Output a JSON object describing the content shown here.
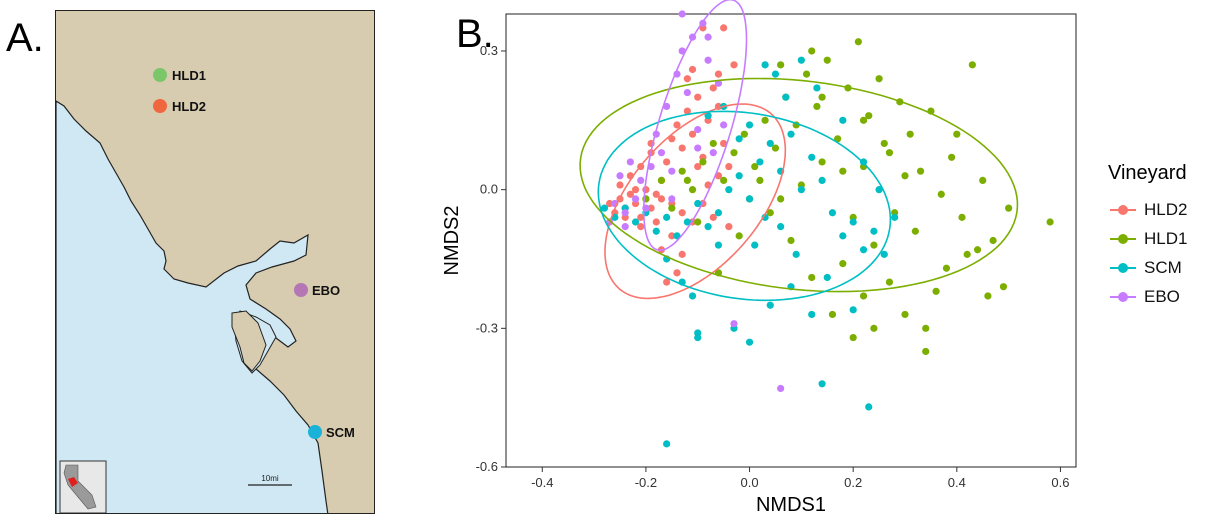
{
  "panels": {
    "a_label": "A.",
    "b_label": "B."
  },
  "map": {
    "sites": [
      {
        "name": "HLD1",
        "color": "#7cc66a"
      },
      {
        "name": "HLD2",
        "color": "#f0663e"
      },
      {
        "name": "EBO",
        "color": "#b576b5"
      },
      {
        "name": "SCM",
        "color": "#1ab2d8"
      }
    ],
    "scale_label": "10mi",
    "land_color": "#d8ccb0",
    "water_color": "#cfe8f3"
  },
  "chart_data": {
    "type": "scatter",
    "xlabel": "NMDS1",
    "ylabel": "NMDS2",
    "xlim": [
      -0.47,
      0.63
    ],
    "ylim": [
      -0.6,
      0.38
    ],
    "xticks": [
      "-0.4",
      "-0.2",
      "0.0",
      "0.2",
      "0.4",
      "0.6"
    ],
    "xtick_values": [
      -0.4,
      -0.2,
      0.0,
      0.2,
      0.4,
      0.6
    ],
    "yticks": [
      "0.3",
      "0.0",
      "-0.3",
      "-0.6"
    ],
    "ytick_values": [
      0.3,
      0.0,
      -0.3,
      -0.6
    ],
    "grid": false,
    "legend": {
      "title": "Vineyard",
      "placement": "right"
    },
    "series": [
      {
        "name": "HLD2",
        "color": "#f8766d",
        "ellipse": {
          "cx": -0.105,
          "cy": -0.025,
          "rx": 0.24,
          "ry": 0.13,
          "angle": 55
        },
        "points": [
          [
            -0.27,
            -0.03
          ],
          [
            -0.26,
            -0.05
          ],
          [
            -0.25,
            -0.02
          ],
          [
            -0.24,
            -0.04
          ],
          [
            -0.23,
            -0.01
          ],
          [
            -0.22,
            -0.03
          ],
          [
            -0.21,
            -0.06
          ],
          [
            -0.2,
            -0.02
          ],
          [
            -0.19,
            -0.04
          ],
          [
            -0.18,
            -0.01
          ],
          [
            -0.25,
            0.01
          ],
          [
            -0.23,
            0.03
          ],
          [
            -0.21,
            0.05
          ],
          [
            -0.19,
            0.08
          ],
          [
            -0.17,
            0.02
          ],
          [
            -0.16,
            0.06
          ],
          [
            -0.15,
            0.11
          ],
          [
            -0.14,
            0.14
          ],
          [
            -0.13,
            0.09
          ],
          [
            -0.12,
            0.17
          ],
          [
            -0.11,
            0.12
          ],
          [
            -0.1,
            0.2
          ],
          [
            -0.09,
            0.07
          ],
          [
            -0.08,
            0.15
          ],
          [
            -0.07,
            0.22
          ],
          [
            -0.06,
            0.18
          ],
          [
            -0.05,
            0.1
          ],
          [
            -0.04,
            0.05
          ],
          [
            -0.03,
            0.27
          ],
          [
            -0.12,
            0.24
          ],
          [
            -0.11,
            0.26
          ],
          [
            -0.2,
            0.0
          ],
          [
            -0.22,
            0.0
          ],
          [
            -0.24,
            -0.06
          ],
          [
            -0.17,
            -0.02
          ],
          [
            -0.15,
            -0.03
          ],
          [
            -0.13,
            -0.05
          ],
          [
            -0.11,
            -0.07
          ],
          [
            -0.09,
            -0.03
          ],
          [
            -0.07,
            -0.06
          ],
          [
            -0.15,
            -0.1
          ],
          [
            -0.13,
            -0.14
          ],
          [
            -0.14,
            -0.18
          ],
          [
            -0.16,
            -0.2
          ],
          [
            -0.17,
            -0.13
          ],
          [
            -0.19,
            0.1
          ],
          [
            -0.06,
            0.25
          ],
          [
            -0.05,
            0.35
          ],
          [
            -0.09,
            0.35
          ],
          [
            -0.21,
            -0.08
          ],
          [
            -0.18,
            -0.07
          ],
          [
            -0.1,
            0.05
          ],
          [
            -0.08,
            0.01
          ],
          [
            -0.04,
            -0.08
          ],
          [
            -0.06,
            0.03
          ]
        ]
      },
      {
        "name": "HLD1",
        "color": "#7cae00",
        "ellipse": {
          "cx": 0.095,
          "cy": 0.01,
          "rx": 0.425,
          "ry": 0.225,
          "angle": -8
        },
        "points": [
          [
            -0.2,
            -0.02
          ],
          [
            -0.17,
            0.02
          ],
          [
            -0.15,
            -0.04
          ],
          [
            -0.13,
            0.04
          ],
          [
            -0.11,
            0.0
          ],
          [
            -0.09,
            0.06
          ],
          [
            -0.07,
            0.1
          ],
          [
            -0.05,
            0.02
          ],
          [
            -0.03,
            0.08
          ],
          [
            -0.01,
            0.12
          ],
          [
            0.01,
            0.05
          ],
          [
            0.03,
            0.15
          ],
          [
            0.05,
            0.09
          ],
          [
            0.07,
            0.2
          ],
          [
            0.09,
            0.14
          ],
          [
            0.11,
            0.25
          ],
          [
            0.13,
            0.18
          ],
          [
            0.15,
            0.28
          ],
          [
            0.17,
            0.11
          ],
          [
            0.19,
            0.22
          ],
          [
            0.21,
            0.32
          ],
          [
            0.23,
            0.16
          ],
          [
            0.25,
            0.24
          ],
          [
            0.27,
            0.08
          ],
          [
            0.29,
            0.19
          ],
          [
            0.31,
            0.12
          ],
          [
            0.33,
            0.04
          ],
          [
            0.35,
            0.17
          ],
          [
            0.37,
            -0.01
          ],
          [
            0.39,
            0.07
          ],
          [
            0.41,
            -0.06
          ],
          [
            0.43,
            0.27
          ],
          [
            0.45,
            0.02
          ],
          [
            0.47,
            -0.11
          ],
          [
            0.49,
            -0.21
          ],
          [
            0.5,
            -0.04
          ],
          [
            0.58,
            -0.07
          ],
          [
            0.42,
            -0.14
          ],
          [
            0.38,
            -0.17
          ],
          [
            0.36,
            -0.22
          ],
          [
            0.34,
            -0.3
          ],
          [
            0.34,
            -0.35
          ],
          [
            0.3,
            -0.27
          ],
          [
            0.27,
            -0.2
          ],
          [
            0.24,
            -0.12
          ],
          [
            0.22,
            -0.23
          ],
          [
            0.2,
            -0.32
          ],
          [
            0.16,
            -0.27
          ],
          [
            0.12,
            -0.19
          ],
          [
            0.08,
            -0.11
          ],
          [
            0.04,
            -0.05
          ],
          [
            0.0,
            -0.02
          ],
          [
            -0.02,
            -0.1
          ],
          [
            -0.06,
            -0.18
          ],
          [
            -0.1,
            -0.07
          ],
          [
            -0.12,
            0.02
          ],
          [
            0.06,
            0.27
          ],
          [
            0.14,
            0.2
          ],
          [
            0.18,
            0.04
          ],
          [
            0.22,
            0.05
          ],
          [
            0.26,
            0.1
          ],
          [
            0.3,
            0.03
          ],
          [
            0.14,
            0.06
          ],
          [
            0.1,
            0.01
          ],
          [
            0.06,
            -0.02
          ],
          [
            0.02,
            0.02
          ],
          [
            0.2,
            -0.06
          ],
          [
            0.28,
            -0.05
          ],
          [
            0.32,
            -0.09
          ],
          [
            0.4,
            0.12
          ],
          [
            0.44,
            -0.13
          ],
          [
            0.46,
            -0.23
          ],
          [
            0.24,
            -0.3
          ],
          [
            0.18,
            -0.16
          ],
          [
            0.22,
            0.15
          ],
          [
            0.12,
            0.3
          ]
        ]
      },
      {
        "name": "SCM",
        "color": "#00bfc4",
        "ellipse": {
          "cx": -0.01,
          "cy": -0.035,
          "rx": 0.285,
          "ry": 0.2,
          "angle": -12
        },
        "points": [
          [
            -0.28,
            -0.04
          ],
          [
            -0.26,
            -0.06
          ],
          [
            -0.24,
            -0.04
          ],
          [
            -0.22,
            -0.07
          ],
          [
            -0.2,
            -0.05
          ],
          [
            -0.18,
            -0.09
          ],
          [
            -0.16,
            -0.06
          ],
          [
            -0.14,
            -0.1
          ],
          [
            -0.12,
            -0.07
          ],
          [
            -0.1,
            -0.03
          ],
          [
            -0.08,
            -0.08
          ],
          [
            -0.06,
            -0.05
          ],
          [
            -0.04,
            0.0
          ],
          [
            -0.02,
            0.03
          ],
          [
            0.0,
            -0.02
          ],
          [
            0.02,
            0.06
          ],
          [
            0.04,
            0.1
          ],
          [
            0.06,
            0.04
          ],
          [
            0.08,
            0.12
          ],
          [
            0.1,
            0.0
          ],
          [
            0.12,
            0.07
          ],
          [
            0.14,
            0.02
          ],
          [
            0.16,
            -0.05
          ],
          [
            0.18,
            -0.1
          ],
          [
            0.2,
            -0.07
          ],
          [
            0.22,
            -0.13
          ],
          [
            0.24,
            -0.09
          ],
          [
            0.26,
            -0.14
          ],
          [
            0.28,
            -0.06
          ],
          [
            0.07,
            0.2
          ],
          [
            0.05,
            0.25
          ],
          [
            0.03,
            0.27
          ],
          [
            0.1,
            0.28
          ],
          [
            0.13,
            0.22
          ],
          [
            0.18,
            0.15
          ],
          [
            0.22,
            0.06
          ],
          [
            0.25,
            0.0
          ],
          [
            -0.16,
            -0.15
          ],
          [
            -0.13,
            -0.2
          ],
          [
            -0.11,
            -0.23
          ],
          [
            -0.1,
            -0.31
          ],
          [
            -0.1,
            -0.32
          ],
          [
            -0.03,
            -0.3
          ],
          [
            0.0,
            -0.33
          ],
          [
            0.04,
            -0.25
          ],
          [
            0.08,
            -0.21
          ],
          [
            0.12,
            -0.27
          ],
          [
            0.15,
            -0.19
          ],
          [
            0.2,
            -0.26
          ],
          [
            0.23,
            -0.47
          ],
          [
            0.14,
            -0.42
          ],
          [
            -0.16,
            -0.55
          ],
          [
            -0.06,
            -0.12
          ],
          [
            0.01,
            -0.12
          ],
          [
            0.06,
            -0.08
          ],
          [
            0.09,
            -0.14
          ],
          [
            0.03,
            -0.06
          ],
          [
            -0.08,
            0.16
          ],
          [
            -0.05,
            0.18
          ],
          [
            -0.02,
            0.11
          ],
          [
            0.0,
            0.14
          ]
        ]
      },
      {
        "name": "EBO",
        "color": "#c77cff",
        "ellipse": {
          "cx": -0.105,
          "cy": 0.14,
          "rx": 0.28,
          "ry": 0.07,
          "angle": 75
        },
        "points": [
          [
            -0.26,
            -0.03
          ],
          [
            -0.24,
            -0.05
          ],
          [
            -0.22,
            -0.02
          ],
          [
            -0.25,
            0.03
          ],
          [
            -0.23,
            0.06
          ],
          [
            -0.21,
            0.02
          ],
          [
            -0.19,
            0.05
          ],
          [
            -0.18,
            0.12
          ],
          [
            -0.16,
            0.18
          ],
          [
            -0.17,
            0.08
          ],
          [
            -0.15,
            0.04
          ],
          [
            -0.14,
            0.25
          ],
          [
            -0.13,
            0.3
          ],
          [
            -0.12,
            0.21
          ],
          [
            -0.11,
            0.33
          ],
          [
            -0.09,
            0.36
          ],
          [
            -0.08,
            0.33
          ],
          [
            -0.06,
            0.23
          ],
          [
            -0.05,
            0.14
          ],
          [
            -0.07,
            0.08
          ],
          [
            -0.1,
            0.09
          ],
          [
            -0.08,
            0.28
          ],
          [
            -0.13,
            0.38
          ],
          [
            -0.2,
            -0.04
          ],
          [
            -0.27,
            -0.07
          ],
          [
            -0.24,
            -0.08
          ],
          [
            -0.03,
            -0.29
          ],
          [
            0.06,
            -0.43
          ],
          [
            -0.1,
            0.13
          ],
          [
            -0.15,
            -0.02
          ]
        ]
      }
    ]
  }
}
